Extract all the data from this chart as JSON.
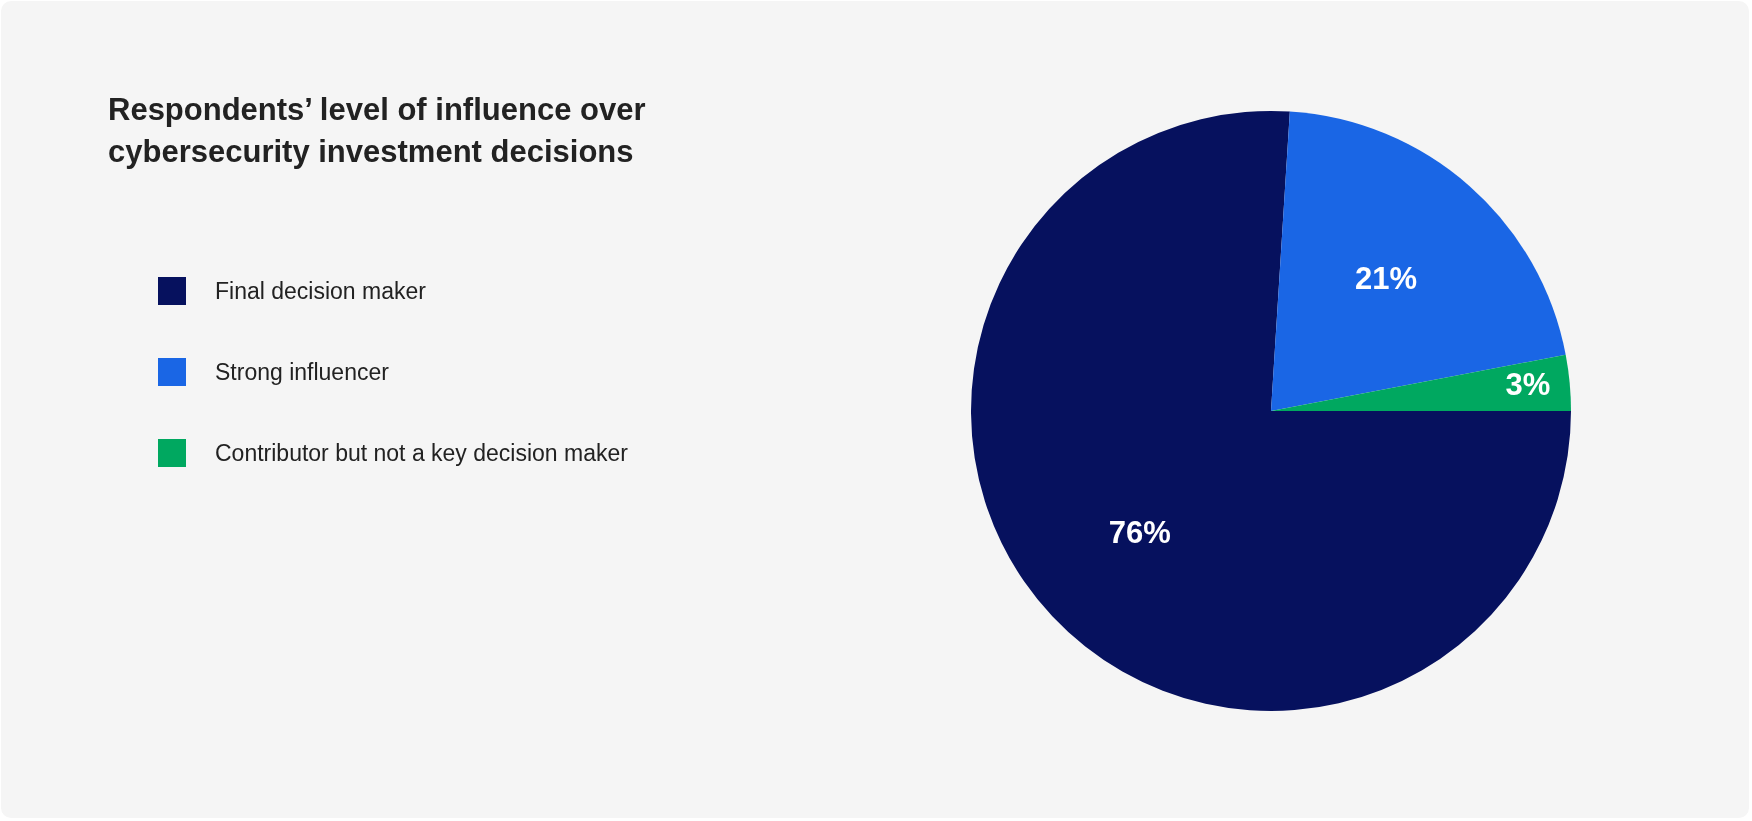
{
  "chart_data": {
    "type": "pie",
    "title": "Respondents’ level of influence over cybersecurity investment decisions",
    "categories": [
      "Final decision maker",
      "Strong influencer",
      "Contributor but not a key decision maker"
    ],
    "values": [
      76,
      21,
      3
    ],
    "colors": [
      "#06115e",
      "#1a66e5",
      "#00a860"
    ],
    "value_labels": [
      "76%",
      "21%",
      "3%"
    ],
    "legend": "left"
  }
}
